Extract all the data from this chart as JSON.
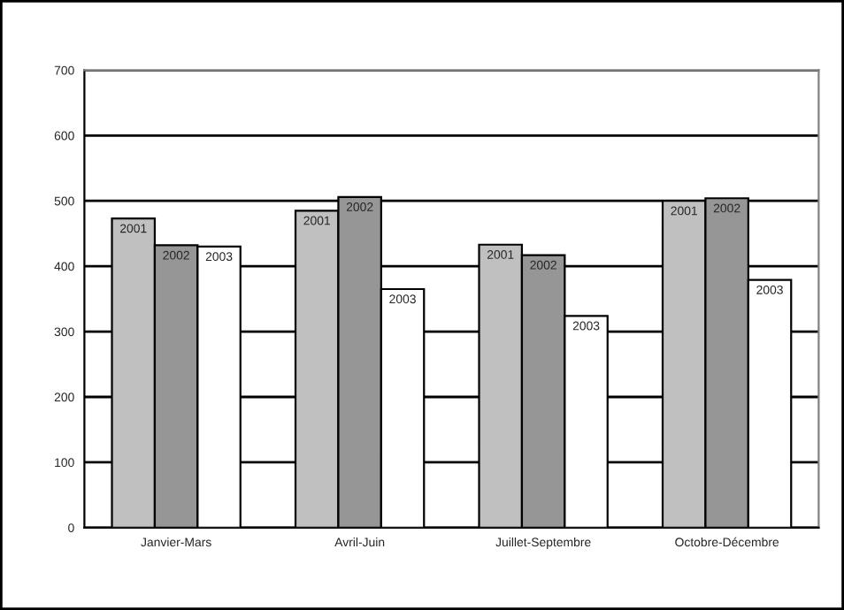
{
  "chart_data": {
    "type": "bar",
    "categories": [
      "Janvier-Mars",
      "Avril-Juin",
      "Juillet-Septembre",
      "Octobre-Décembre"
    ],
    "series": [
      {
        "name": "2001",
        "color": "#c0c0c0",
        "values": [
          473,
          485,
          433,
          500
        ]
      },
      {
        "name": "2002",
        "color": "#969696",
        "values": [
          432,
          506,
          417,
          504
        ]
      },
      {
        "name": "2003",
        "color": "#ffffff",
        "values": [
          430,
          365,
          324,
          379
        ]
      }
    ],
    "ylim": [
      0,
      700
    ],
    "yticks": [
      0,
      100,
      200,
      300,
      400,
      500,
      600,
      700
    ],
    "grid": "y",
    "legend": false
  }
}
